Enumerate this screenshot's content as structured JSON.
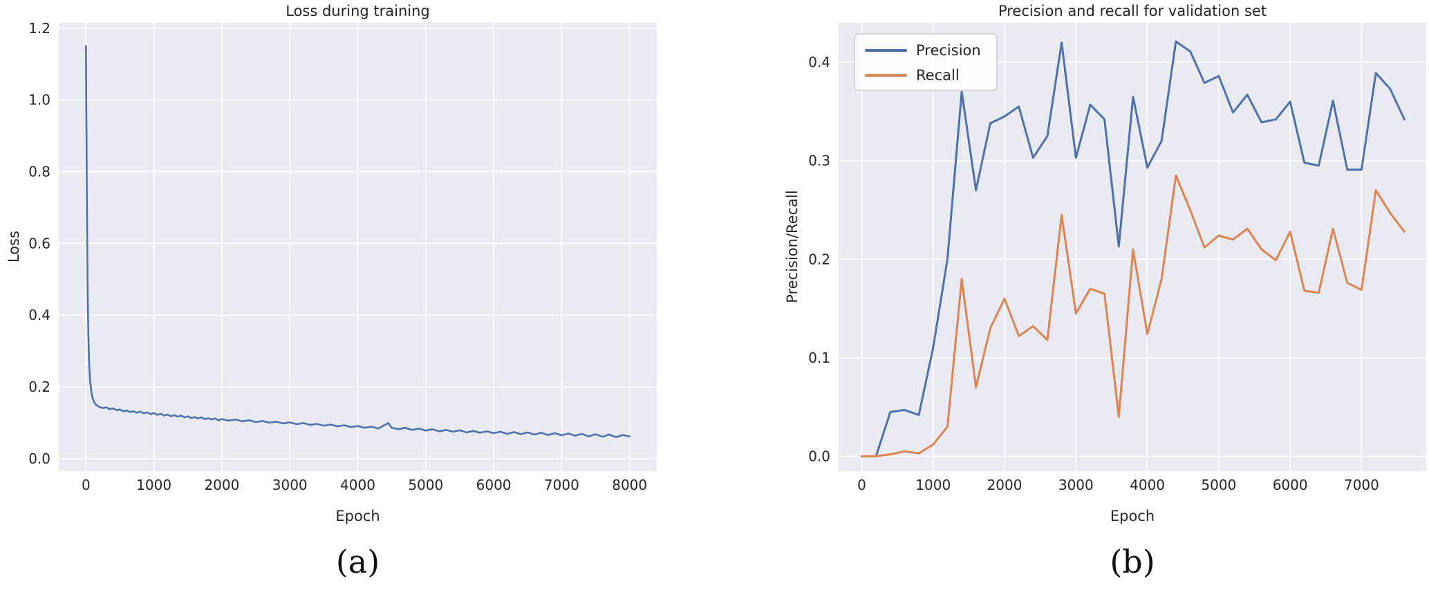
{
  "figure": {
    "background": "#ffffff",
    "panel_background": "#eaeaf2",
    "grid_color": "#ffffff",
    "text_color": "#262626",
    "accent_blue": "#4C72B0",
    "accent_orange": "#DD8452"
  },
  "chart_data": [
    {
      "id": "loss",
      "type": "line",
      "title": "Loss during training",
      "xlabel": "Epoch",
      "ylabel": "Loss",
      "caption": "(a)",
      "grid": true,
      "legend": {
        "show": false,
        "position": ""
      },
      "xlim": [
        -400,
        8400
      ],
      "ylim": [
        -0.035,
        1.215
      ],
      "xticks": {
        "values": [
          0,
          1000,
          2000,
          3000,
          4000,
          5000,
          6000,
          7000,
          8000
        ],
        "labels": [
          "0",
          "1000",
          "2000",
          "3000",
          "4000",
          "5000",
          "6000",
          "7000",
          "8000"
        ]
      },
      "yticks": {
        "values": [
          0.0,
          0.2,
          0.4,
          0.6,
          0.8,
          1.0,
          1.2
        ],
        "labels": [
          "0.0",
          "0.2",
          "0.4",
          "0.6",
          "0.8",
          "1.0",
          "1.2"
        ]
      },
      "series": [
        {
          "name": "Loss",
          "color": "#4C72B0",
          "width": 2.6,
          "points": [
            [
              0,
              1.15
            ],
            [
              8,
              0.9
            ],
            [
              16,
              0.66
            ],
            [
              25,
              0.46
            ],
            [
              35,
              0.345
            ],
            [
              48,
              0.262
            ],
            [
              62,
              0.215
            ],
            [
              80,
              0.185
            ],
            [
              100,
              0.168
            ],
            [
              125,
              0.156
            ],
            [
              155,
              0.149
            ],
            [
              200,
              0.144
            ],
            [
              250,
              0.141
            ],
            [
              300,
              0.143
            ],
            [
              350,
              0.138
            ],
            [
              400,
              0.14
            ],
            [
              450,
              0.135
            ],
            [
              500,
              0.137
            ],
            [
              550,
              0.132
            ],
            [
              600,
              0.134
            ],
            [
              650,
              0.13
            ],
            [
              700,
              0.132
            ],
            [
              750,
              0.128
            ],
            [
              800,
              0.131
            ],
            [
              850,
              0.126
            ],
            [
              900,
              0.129
            ],
            [
              950,
              0.124
            ],
            [
              1000,
              0.127
            ],
            [
              1050,
              0.122
            ],
            [
              1100,
              0.125
            ],
            [
              1150,
              0.12
            ],
            [
              1200,
              0.123
            ],
            [
              1250,
              0.118
            ],
            [
              1300,
              0.121
            ],
            [
              1350,
              0.117
            ],
            [
              1400,
              0.12
            ],
            [
              1450,
              0.115
            ],
            [
              1500,
              0.118
            ],
            [
              1550,
              0.113
            ],
            [
              1600,
              0.116
            ],
            [
              1650,
              0.112
            ],
            [
              1700,
              0.115
            ],
            [
              1750,
              0.11
            ],
            [
              1800,
              0.113
            ],
            [
              1850,
              0.109
            ],
            [
              1900,
              0.112
            ],
            [
              1950,
              0.107
            ],
            [
              2000,
              0.11
            ],
            [
              2100,
              0.106
            ],
            [
              2200,
              0.109
            ],
            [
              2300,
              0.104
            ],
            [
              2400,
              0.107
            ],
            [
              2500,
              0.102
            ],
            [
              2600,
              0.105
            ],
            [
              2700,
              0.1
            ],
            [
              2800,
              0.103
            ],
            [
              2900,
              0.098
            ],
            [
              3000,
              0.101
            ],
            [
              3100,
              0.096
            ],
            [
              3200,
              0.099
            ],
            [
              3300,
              0.094
            ],
            [
              3400,
              0.097
            ],
            [
              3500,
              0.092
            ],
            [
              3600,
              0.095
            ],
            [
              3700,
              0.09
            ],
            [
              3800,
              0.093
            ],
            [
              3900,
              0.088
            ],
            [
              4000,
              0.091
            ],
            [
              4100,
              0.086
            ],
            [
              4200,
              0.089
            ],
            [
              4300,
              0.084
            ],
            [
              4400,
              0.094
            ],
            [
              4450,
              0.099
            ],
            [
              4500,
              0.086
            ],
            [
              4600,
              0.082
            ],
            [
              4700,
              0.086
            ],
            [
              4800,
              0.08
            ],
            [
              4900,
              0.084
            ],
            [
              5000,
              0.078
            ],
            [
              5100,
              0.082
            ],
            [
              5200,
              0.076
            ],
            [
              5300,
              0.08
            ],
            [
              5400,
              0.075
            ],
            [
              5500,
              0.079
            ],
            [
              5600,
              0.073
            ],
            [
              5700,
              0.077
            ],
            [
              5800,
              0.072
            ],
            [
              5900,
              0.076
            ],
            [
              6000,
              0.071
            ],
            [
              6100,
              0.075
            ],
            [
              6200,
              0.069
            ],
            [
              6300,
              0.074
            ],
            [
              6400,
              0.068
            ],
            [
              6500,
              0.073
            ],
            [
              6600,
              0.067
            ],
            [
              6700,
              0.072
            ],
            [
              6800,
              0.066
            ],
            [
              6900,
              0.071
            ],
            [
              7000,
              0.065
            ],
            [
              7100,
              0.07
            ],
            [
              7200,
              0.064
            ],
            [
              7300,
              0.069
            ],
            [
              7400,
              0.062
            ],
            [
              7500,
              0.068
            ],
            [
              7600,
              0.061
            ],
            [
              7700,
              0.067
            ],
            [
              7800,
              0.06
            ],
            [
              7900,
              0.066
            ],
            [
              8000,
              0.062
            ]
          ]
        }
      ]
    },
    {
      "id": "pr",
      "type": "line",
      "title": "Precision and recall for validation set",
      "xlabel": "Epoch",
      "ylabel": "Precision/Recall",
      "caption": "(b)",
      "grid": true,
      "legend": {
        "show": true,
        "position": "upper-left"
      },
      "xlim": [
        -324,
        7906
      ],
      "ylim": [
        -0.0151,
        0.44
      ],
      "xticks": {
        "values": [
          0,
          1000,
          2000,
          3000,
          4000,
          5000,
          6000,
          7000
        ],
        "labels": [
          "0",
          "1000",
          "2000",
          "3000",
          "4000",
          "5000",
          "6000",
          "7000"
        ]
      },
      "yticks": {
        "values": [
          0.0,
          0.1,
          0.2,
          0.3,
          0.4
        ],
        "labels": [
          "0.0",
          "0.1",
          "0.2",
          "0.3",
          "0.4"
        ]
      },
      "series": [
        {
          "name": "Precision",
          "color": "#4C72B0",
          "width": 3,
          "points": [
            [
              0,
              0
            ],
            [
              200,
              0
            ],
            [
              400,
              0.045
            ],
            [
              600,
              0.047
            ],
            [
              800,
              0.042
            ],
            [
              1000,
              0.11
            ],
            [
              1200,
              0.2
            ],
            [
              1400,
              0.37
            ],
            [
              1600,
              0.27
            ],
            [
              1800,
              0.338
            ],
            [
              2000,
              0.345
            ],
            [
              2200,
              0.355
            ],
            [
              2400,
              0.303
            ],
            [
              2600,
              0.325
            ],
            [
              2800,
              0.42
            ],
            [
              3000,
              0.303
            ],
            [
              3200,
              0.357
            ],
            [
              3400,
              0.342
            ],
            [
              3600,
              0.213
            ],
            [
              3800,
              0.365
            ],
            [
              4000,
              0.293
            ],
            [
              4200,
              0.32
            ],
            [
              4400,
              0.421
            ],
            [
              4600,
              0.411
            ],
            [
              4800,
              0.379
            ],
            [
              5000,
              0.386
            ],
            [
              5200,
              0.349
            ],
            [
              5400,
              0.367
            ],
            [
              5600,
              0.339
            ],
            [
              5800,
              0.342
            ],
            [
              6000,
              0.36
            ],
            [
              6200,
              0.298
            ],
            [
              6400,
              0.295
            ],
            [
              6600,
              0.361
            ],
            [
              6800,
              0.291
            ],
            [
              7000,
              0.291
            ],
            [
              7200,
              0.389
            ],
            [
              7400,
              0.373
            ],
            [
              7600,
              0.342
            ]
          ]
        },
        {
          "name": "Recall",
          "color": "#DD8452",
          "width": 3,
          "points": [
            [
              0,
              0
            ],
            [
              200,
              0
            ],
            [
              400,
              0.002
            ],
            [
              600,
              0.005
            ],
            [
              800,
              0.003
            ],
            [
              1000,
              0.012
            ],
            [
              1200,
              0.03
            ],
            [
              1400,
              0.18
            ],
            [
              1600,
              0.07
            ],
            [
              1800,
              0.13
            ],
            [
              2000,
              0.16
            ],
            [
              2200,
              0.122
            ],
            [
              2400,
              0.132
            ],
            [
              2600,
              0.118
            ],
            [
              2800,
              0.245
            ],
            [
              3000,
              0.145
            ],
            [
              3200,
              0.17
            ],
            [
              3400,
              0.165
            ],
            [
              3600,
              0.04
            ],
            [
              3800,
              0.21
            ],
            [
              4000,
              0.124
            ],
            [
              4200,
              0.18
            ],
            [
              4400,
              0.285
            ],
            [
              4600,
              0.25
            ],
            [
              4800,
              0.212
            ],
            [
              5000,
              0.224
            ],
            [
              5200,
              0.22
            ],
            [
              5400,
              0.231
            ],
            [
              5600,
              0.21
            ],
            [
              5800,
              0.199
            ],
            [
              6000,
              0.228
            ],
            [
              6200,
              0.168
            ],
            [
              6400,
              0.166
            ],
            [
              6600,
              0.231
            ],
            [
              6800,
              0.176
            ],
            [
              7000,
              0.169
            ],
            [
              7200,
              0.27
            ],
            [
              7400,
              0.247
            ],
            [
              7600,
              0.228
            ]
          ]
        }
      ]
    }
  ]
}
